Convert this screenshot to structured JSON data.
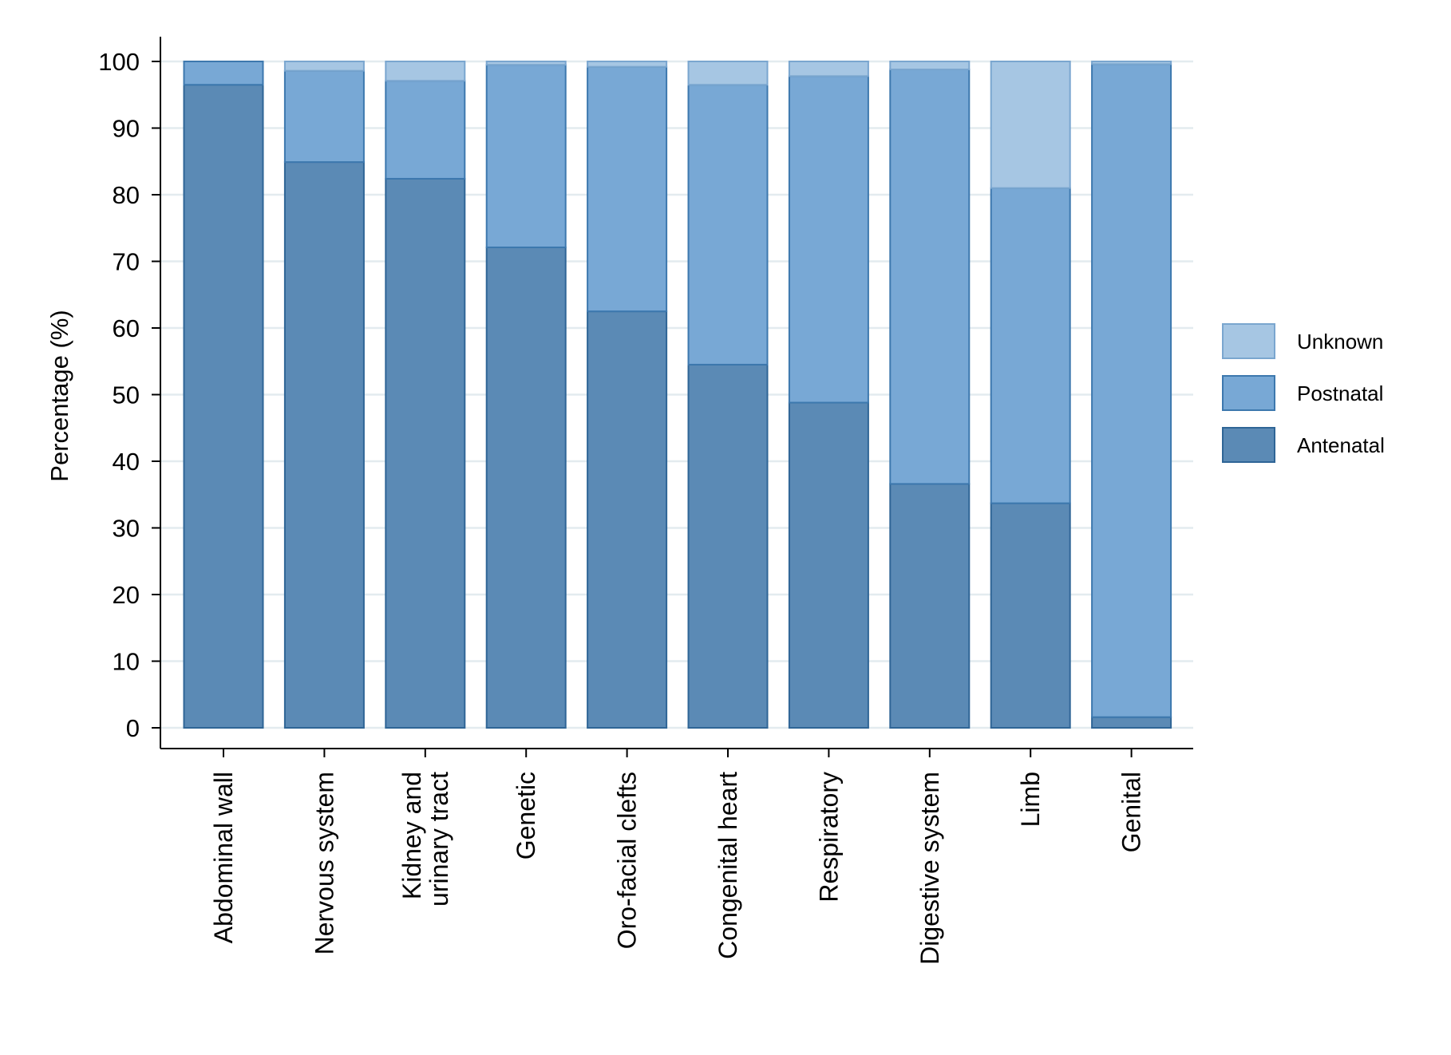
{
  "chart_data": {
    "type": "bar",
    "stacked": true,
    "ylabel": "Percentage (%)",
    "xlabel": "",
    "ylim": [
      0,
      100
    ],
    "yticks": [
      0,
      10,
      20,
      30,
      40,
      50,
      60,
      70,
      80,
      90,
      100
    ],
    "grid": true,
    "legend_position": "right",
    "categories": [
      "Abdominal wall",
      "Nervous system",
      "Kidney and urinary tract",
      "Genetic",
      "Oro-facial clefts",
      "Congenital heart",
      "Respiratory",
      "Digestive system",
      "Limb",
      "Genital"
    ],
    "category_lines": [
      [
        "Abdominal wall"
      ],
      [
        "Nervous system"
      ],
      [
        "Kidney and",
        "urinary tract"
      ],
      [
        "Genetic"
      ],
      [
        "Oro-facial clefts"
      ],
      [
        "Congenital heart"
      ],
      [
        "Respiratory"
      ],
      [
        "Digestive system"
      ],
      [
        "Limb"
      ],
      [
        "Genital"
      ]
    ],
    "series": [
      {
        "name": "Antenatal",
        "color": "#5b8ab5",
        "stroke": "#2f6596",
        "values": [
          96.5,
          84.9,
          82.4,
          72.1,
          62.5,
          54.5,
          48.8,
          36.6,
          33.7,
          1.6
        ]
      },
      {
        "name": "Postnatal",
        "color": "#78a8d5",
        "stroke": "#3d78ae",
        "values": [
          3.5,
          13.7,
          14.7,
          27.4,
          36.7,
          42.0,
          49.0,
          62.2,
          47.3,
          98.0
        ]
      },
      {
        "name": "Unknown",
        "color": "#a6c6e3",
        "stroke": "#7aa6cf",
        "values": [
          0.0,
          1.4,
          2.9,
          0.5,
          0.8,
          3.5,
          2.2,
          1.2,
          19.0,
          0.4
        ]
      }
    ],
    "legend_order": [
      "Unknown",
      "Postnatal",
      "Antenatal"
    ]
  }
}
